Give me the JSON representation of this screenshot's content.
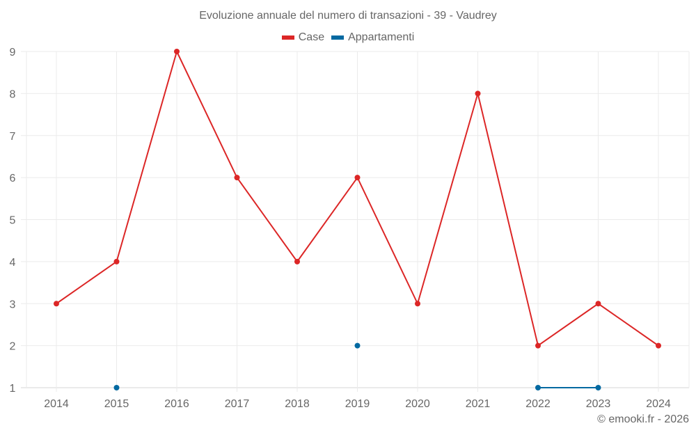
{
  "title": "Evoluzione annuale del numero di transazioni - 39 - Vaudrey",
  "legend": [
    {
      "label": "Case",
      "color": "#dc2626"
    },
    {
      "label": "Appartamenti",
      "color": "#0369a1"
    }
  ],
  "credit": "© emooki.fr - 2026",
  "colors": {
    "grid": "#ebebeb",
    "axis": "#d6d6d6",
    "text": "#666666"
  },
  "chart_data": {
    "type": "line",
    "title": "Evoluzione annuale del numero di transazioni - 39 - Vaudrey",
    "xlabel": "",
    "ylabel": "",
    "categories": [
      "2014",
      "2015",
      "2016",
      "2017",
      "2018",
      "2019",
      "2020",
      "2021",
      "2022",
      "2023",
      "2024"
    ],
    "series": [
      {
        "name": "Case",
        "color": "#dc2626",
        "values": [
          3,
          4,
          9,
          6,
          4,
          6,
          3,
          8,
          2,
          3,
          2
        ]
      },
      {
        "name": "Appartamenti",
        "color": "#0369a1",
        "values": [
          null,
          1,
          null,
          null,
          null,
          2,
          null,
          null,
          1,
          1,
          null
        ]
      }
    ],
    "ylim": [
      1,
      9
    ],
    "yticks": [
      1,
      2,
      3,
      4,
      5,
      6,
      7,
      8,
      9
    ],
    "grid": true,
    "legend_position": "top"
  }
}
